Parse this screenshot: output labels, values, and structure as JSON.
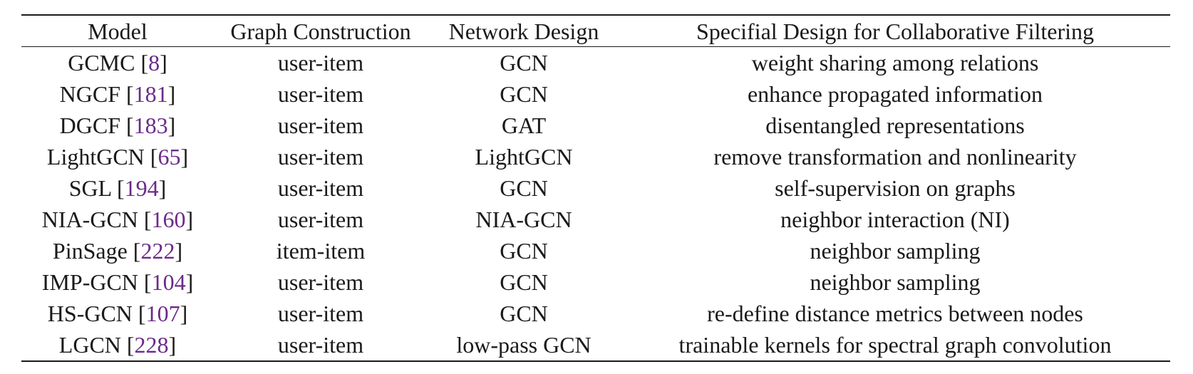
{
  "table": {
    "headers": [
      "Model",
      "Graph Construction",
      "Network Design",
      "Specifial Design for Collaborative Filtering"
    ],
    "rows": [
      {
        "model": "GCMC",
        "ref": "8",
        "graph": "user-item",
        "network": "GCN",
        "design": "weight sharing among relations"
      },
      {
        "model": "NGCF",
        "ref": "181",
        "graph": "user-item",
        "network": "GCN",
        "design": "enhance propagated information"
      },
      {
        "model": "DGCF",
        "ref": "183",
        "graph": "user-item",
        "network": "GAT",
        "design": "disentangled representations"
      },
      {
        "model": "LightGCN",
        "ref": "65",
        "graph": "user-item",
        "network": "LightGCN",
        "design": "remove transformation and nonlinearity"
      },
      {
        "model": "SGL",
        "ref": "194",
        "graph": "user-item",
        "network": "GCN",
        "design": "self-supervision on graphs"
      },
      {
        "model": "NIA-GCN",
        "ref": "160",
        "graph": "user-item",
        "network": "NIA-GCN",
        "design": "neighbor interaction (NI)"
      },
      {
        "model": "PinSage",
        "ref": "222",
        "graph": "item-item",
        "network": "GCN",
        "design": "neighbor sampling"
      },
      {
        "model": "IMP-GCN",
        "ref": "104",
        "graph": "user-item",
        "network": "GCN",
        "design": "neighbor sampling"
      },
      {
        "model": "HS-GCN",
        "ref": "107",
        "graph": "user-item",
        "network": "GCN",
        "design": "re-define distance metrics between nodes"
      },
      {
        "model": "LGCN",
        "ref": "228",
        "graph": "user-item",
        "network": "low-pass GCN",
        "design": "trainable kernels for spectral graph convolution"
      }
    ]
  },
  "colors": {
    "text": "#1a1a1a",
    "citation": "#6b2a8a"
  }
}
